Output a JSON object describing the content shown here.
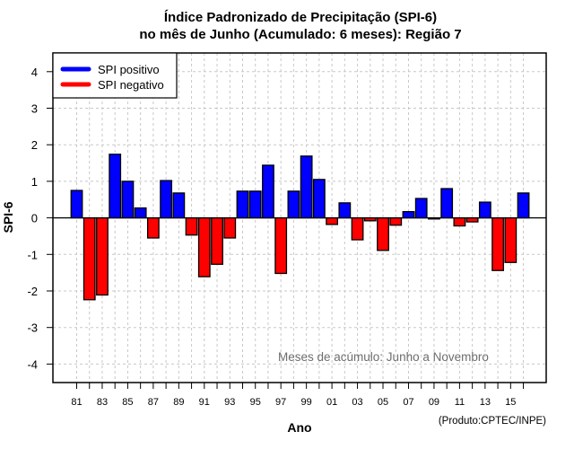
{
  "chart_data": {
    "type": "bar",
    "title": "Índice Padronizado de Precipitação (SPI-6)",
    "subtitle": "no mês de Junho (Acumulado: 6 meses): Região 7",
    "xlabel": "Ano",
    "ylabel": "SPI-6",
    "ylim": [
      -4.5,
      4.5
    ],
    "yticks": [
      "4",
      "3",
      "2",
      "1",
      "0",
      "-1",
      "-2",
      "-3",
      "-4"
    ],
    "ytick_values": [
      4,
      3,
      2,
      1,
      0,
      -1,
      -2,
      -3,
      -4
    ],
    "categories": [
      "1981",
      "1982",
      "1983",
      "1984",
      "1985",
      "1986",
      "1987",
      "1988",
      "1989",
      "1990",
      "1991",
      "1992",
      "1993",
      "1994",
      "1995",
      "1996",
      "1997",
      "1998",
      "1999",
      "2000",
      "2001",
      "2002",
      "2003",
      "2004",
      "2005",
      "2006",
      "2007",
      "2008",
      "2009",
      "2010",
      "2011",
      "2012",
      "2013",
      "2014",
      "2015",
      "2016"
    ],
    "xtick_labels": [
      "81",
      "",
      "83",
      "",
      "85",
      "",
      "87",
      "",
      "89",
      "",
      "91",
      "",
      "93",
      "",
      "95",
      "",
      "97",
      "",
      "99",
      "",
      "01",
      "",
      "03",
      "",
      "05",
      "",
      "07",
      "",
      "09",
      "",
      "11",
      "",
      "13",
      "",
      "15",
      ""
    ],
    "values": [
      0.75,
      -2.24,
      -2.11,
      1.74,
      1.0,
      0.27,
      -0.55,
      1.02,
      0.68,
      -0.47,
      -1.61,
      -1.27,
      -0.55,
      0.73,
      0.73,
      1.44,
      -1.52,
      0.73,
      1.69,
      1.05,
      -0.18,
      0.41,
      -0.6,
      -0.08,
      -0.89,
      -0.2,
      0.17,
      0.53,
      -0.03,
      0.8,
      -0.22,
      -0.11,
      0.43,
      -1.44,
      -1.22,
      0.68
    ],
    "grid": true,
    "legend": {
      "placement": "top-left",
      "entries": [
        {
          "label": "SPI positivo",
          "color": "#0000ff"
        },
        {
          "label": "SPI negativo",
          "color": "#ff0000"
        }
      ]
    },
    "colors": {
      "positive": "#0000ff",
      "negative": "#ff0000"
    },
    "annotation": "Meses de acúmulo: Junho a Novembro",
    "credit": "(Produto:CPTEC/INPE)"
  }
}
